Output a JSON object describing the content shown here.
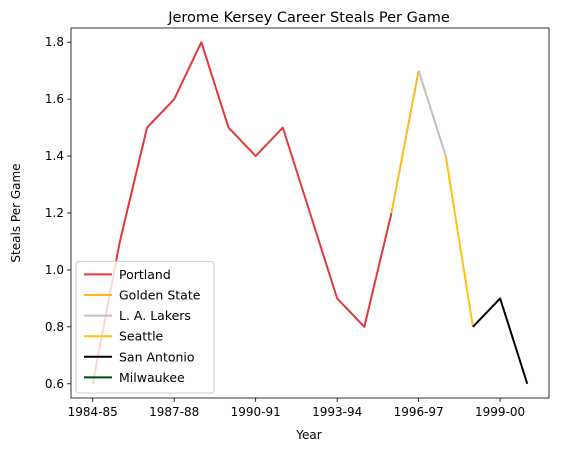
{
  "chart_data": {
    "type": "line",
    "title": "Jerome Kersey Career Steals Per Game",
    "xlabel": "Year",
    "ylabel": "Steals Per Game",
    "x_ticks": [
      "1984-85",
      "1987-88",
      "1990-91",
      "1993-94",
      "1996-97",
      "1999-00"
    ],
    "y_ticks": [
      "0.6",
      "0.8",
      "1.0",
      "1.2",
      "1.4",
      "1.6",
      "1.8"
    ],
    "ylim": [
      0.55,
      1.85
    ],
    "grid": false,
    "legend_position": "lower-left",
    "series": [
      {
        "name": "Portland",
        "color": "#e0383e",
        "x": [
          "1984-85",
          "1985-86",
          "1986-87",
          "1987-88",
          "1988-89",
          "1989-90",
          "1990-91",
          "1991-92",
          "1992-93",
          "1993-94",
          "1994-95",
          "1995-96"
        ],
        "values": [
          0.6,
          1.1,
          1.5,
          1.6,
          1.8,
          1.5,
          1.4,
          1.5,
          1.2,
          0.9,
          0.8,
          1.2
        ]
      },
      {
        "name": "Golden State",
        "color": "#ffb81c",
        "x": [
          "1995-96",
          "1996-97"
        ],
        "values": [
          1.2,
          1.7
        ]
      },
      {
        "name": "L. A. Lakers",
        "color": "#c0c0c0",
        "x": [
          "1996-97",
          "1997-98"
        ],
        "values": [
          1.7,
          1.4
        ]
      },
      {
        "name": "Seattle",
        "color": "#ffc20e",
        "x": [
          "1997-98",
          "1998-99"
        ],
        "values": [
          1.4,
          0.8
        ]
      },
      {
        "name": "San Antonio",
        "color": "#000000",
        "x": [
          "1998-99",
          "1999-00",
          "2000-01"
        ],
        "values": [
          0.8,
          0.9,
          0.6
        ]
      },
      {
        "name": "Milwaukee",
        "color": "#00471b",
        "x": [],
        "values": []
      }
    ]
  }
}
